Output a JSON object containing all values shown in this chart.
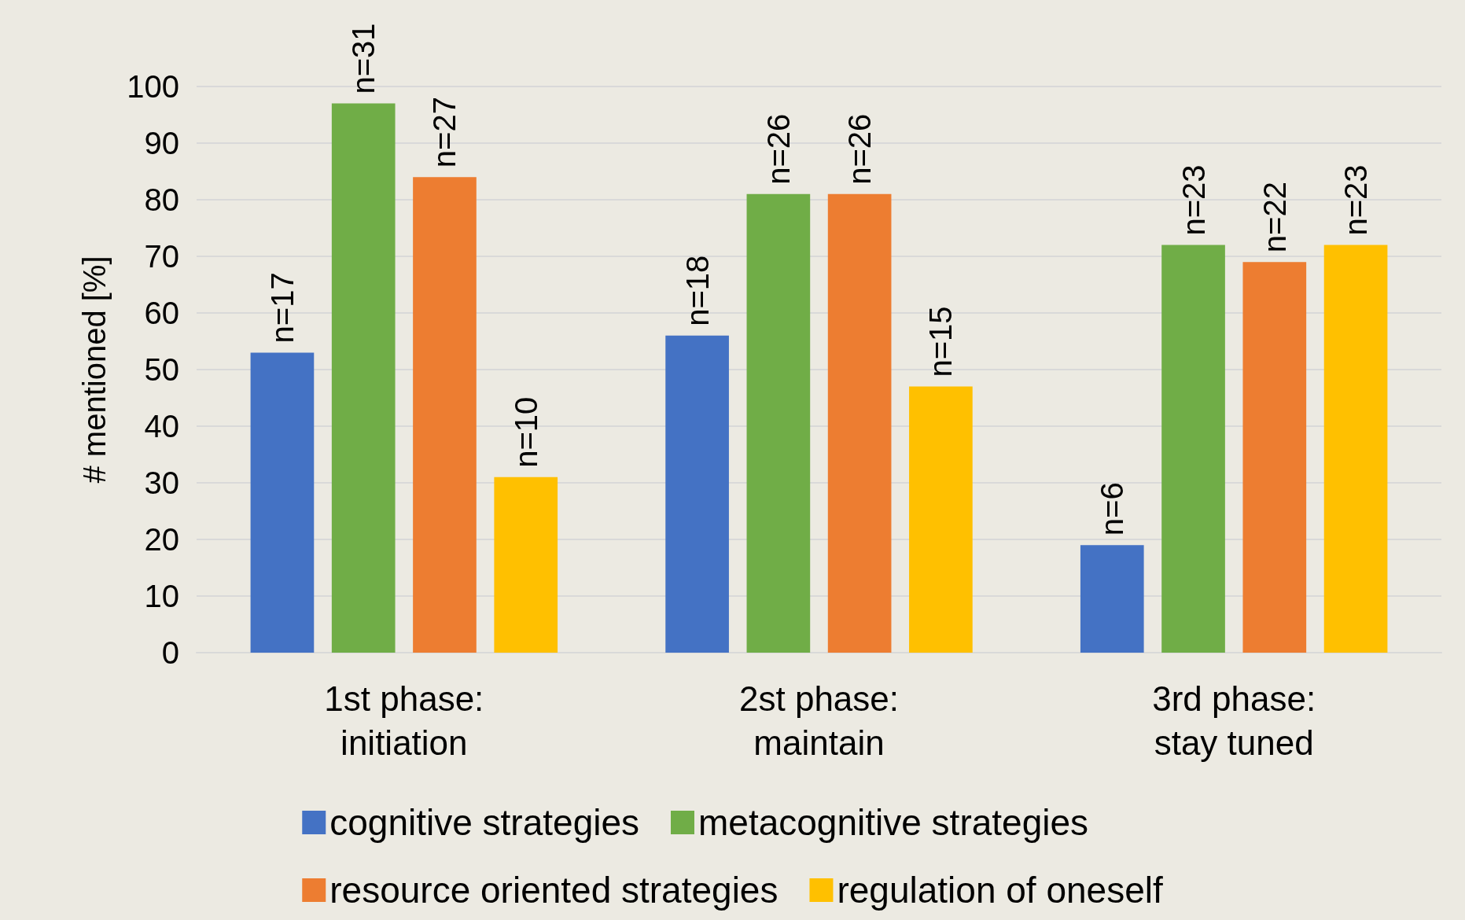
{
  "chart_data": {
    "type": "bar",
    "ylabel": "# mentioned [%]",
    "categories": [
      "1st phase:\ninitiation",
      "2st phase:\nmaintain",
      "3rd phase:\nstay tuned"
    ],
    "series": [
      {
        "name": "cognitive strategies",
        "color": "#4472c4",
        "values": [
          53,
          56,
          19
        ]
      },
      {
        "name": "metacognitive strategies",
        "color": "#70ad47",
        "values": [
          97,
          81,
          72
        ]
      },
      {
        "name": "resource oriented strategies",
        "color": "#ed7d31",
        "values": [
          84,
          81,
          69
        ]
      },
      {
        "name": "regulation of oneself",
        "color": "#ffc000",
        "values": [
          31,
          47,
          72
        ]
      }
    ],
    "annotations": [
      "n=17",
      "n=18",
      "n=6",
      "n=31",
      "n=26",
      "n=23",
      "n=27",
      "n=26",
      "n=22",
      "n=10",
      "n=15",
      "n=23"
    ],
    "ylim": [
      0,
      100
    ],
    "yticks": [
      0,
      10,
      20,
      30,
      40,
      50,
      60,
      70,
      80,
      90,
      100
    ],
    "grid": "y",
    "legend": "bottom"
  }
}
